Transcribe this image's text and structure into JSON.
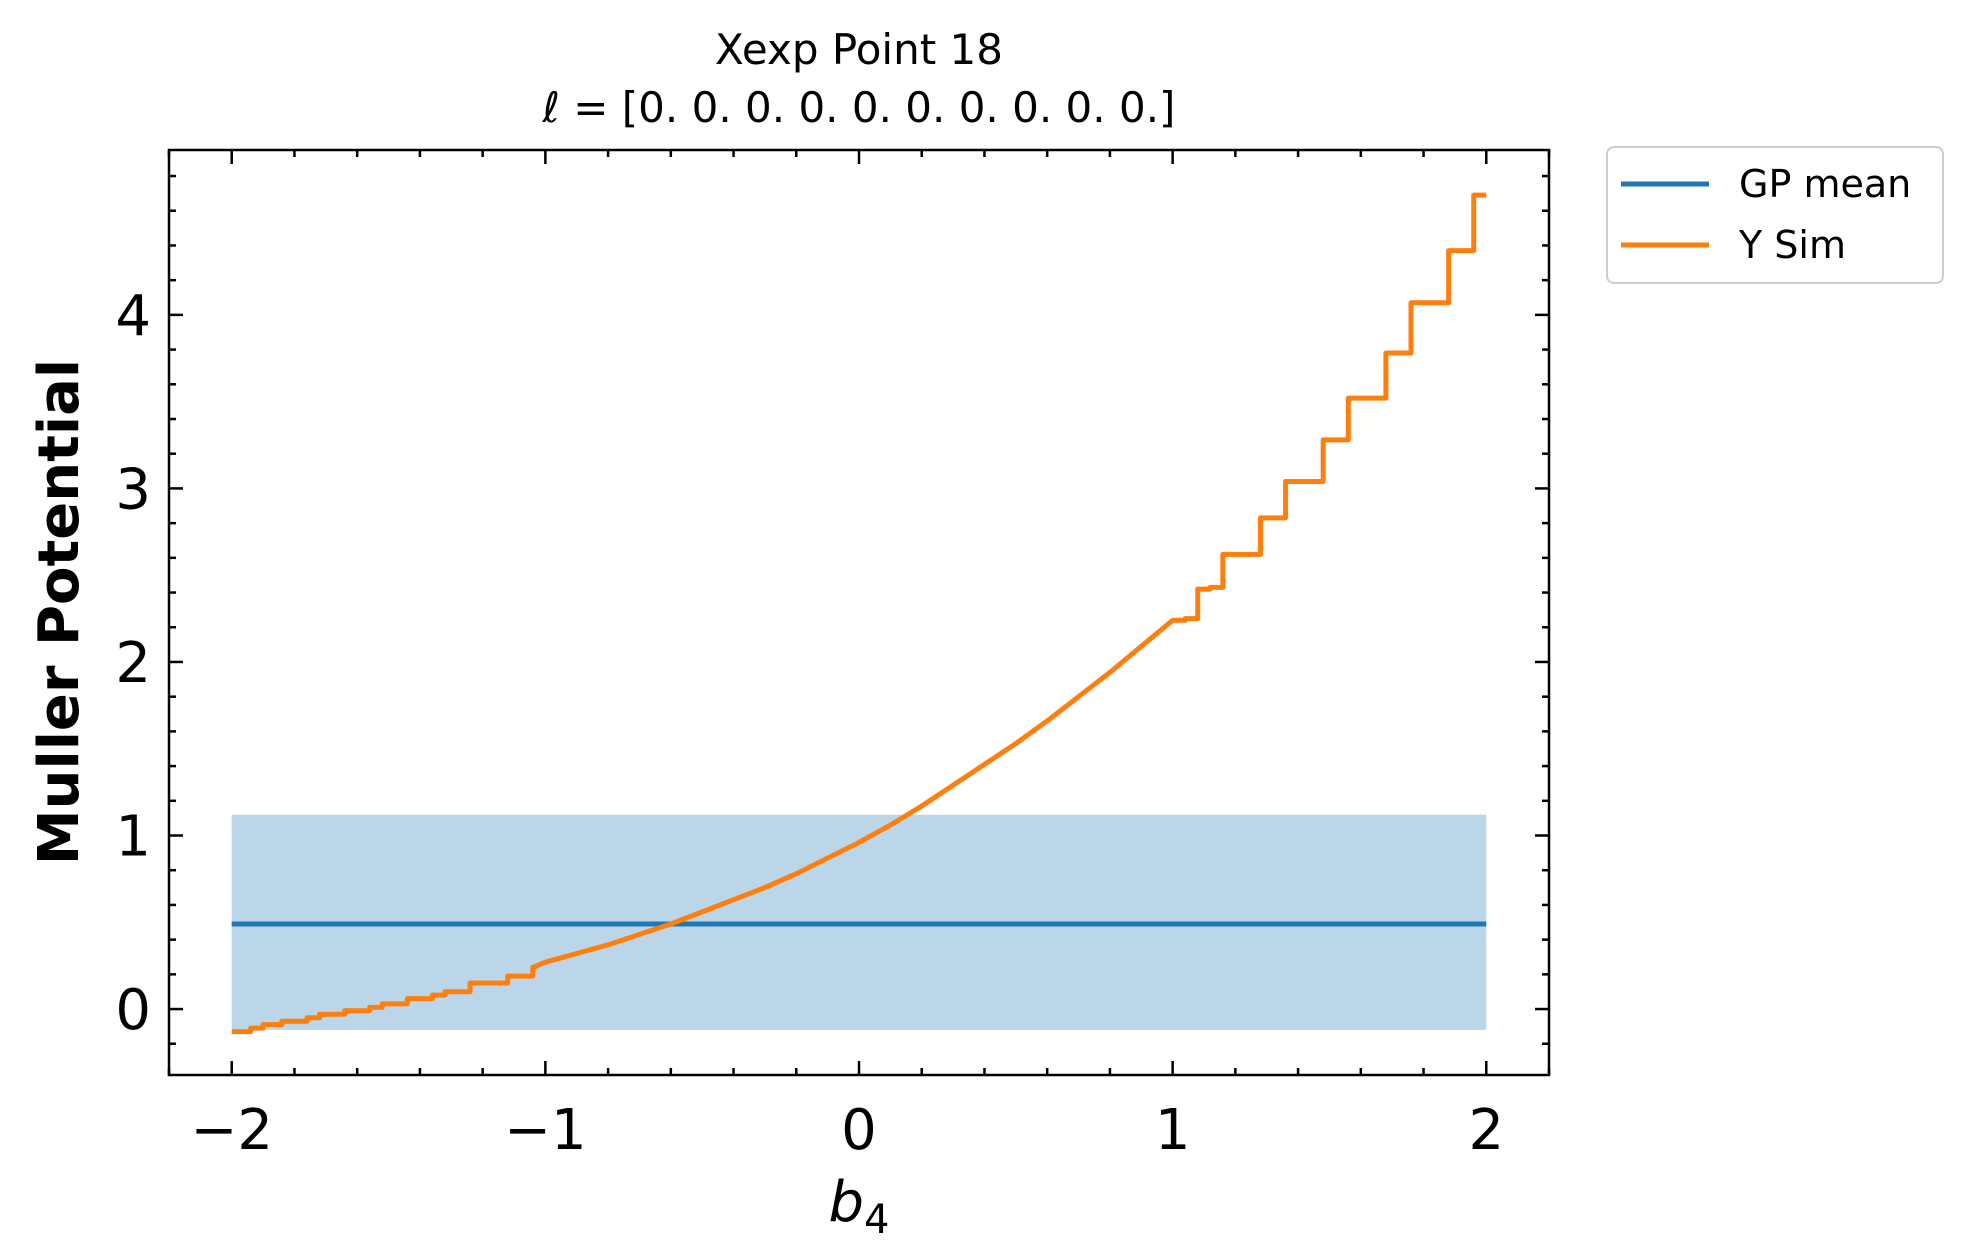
{
  "chart_data": {
    "type": "line",
    "title": "Xexp Point 18",
    "subtitle": "ℓ = [0. 0. 0. 0. 0. 0. 0. 0. 0. 0.]",
    "xlabel": "b",
    "xlabel_sub": "4",
    "ylabel": "Muller Potential",
    "xlim": [
      -2.2,
      2.2
    ],
    "ylim": [
      -0.38,
      4.95
    ],
    "xticks": [
      -2,
      -1,
      0,
      1,
      2
    ],
    "xtick_labels": [
      "−2",
      "−1",
      "0",
      "1",
      "2"
    ],
    "yticks": [
      0,
      1,
      2,
      3,
      4
    ],
    "ytick_labels": [
      "0",
      "1",
      "2",
      "3",
      "4"
    ],
    "grid": false,
    "legend_placement": "outside-top-right",
    "series": [
      {
        "name": "GP mean",
        "color": "#1f77b4",
        "x": [
          -2,
          2
        ],
        "y": [
          0.49,
          0.49
        ],
        "band": {
          "lower": -0.12,
          "upper": 1.12,
          "color": "#bcd6e9"
        }
      },
      {
        "name": "Y Sim",
        "color": "#ff7f0e",
        "x": [
          -2.0,
          -1.95,
          -1.9,
          -1.85,
          -1.8,
          -1.75,
          -1.7,
          -1.65,
          -1.6,
          -1.55,
          -1.5,
          -1.45,
          -1.4,
          -1.35,
          -1.3,
          -1.25,
          -1.2,
          -1.15,
          -1.1,
          -1.05,
          -1.0,
          -0.9,
          -0.8,
          -0.7,
          -0.6,
          -0.5,
          -0.4,
          -0.3,
          -0.2,
          -0.1,
          0.0,
          0.1,
          0.2,
          0.3,
          0.4,
          0.5,
          0.6,
          0.7,
          0.8,
          0.9,
          1.0,
          1.05,
          1.1,
          1.15,
          1.2,
          1.25,
          1.3,
          1.35,
          1.4,
          1.45,
          1.5,
          1.55,
          1.6,
          1.65,
          1.7,
          1.75,
          1.8,
          1.85,
          1.9,
          1.95,
          2.0
        ],
        "y": [
          -0.13,
          -0.1,
          -0.08,
          -0.06,
          -0.04,
          -0.02,
          0.0,
          0.02,
          0.04,
          0.06,
          0.08,
          0.1,
          0.12,
          0.14,
          0.16,
          0.18,
          0.2,
          0.22,
          0.24,
          0.26,
          0.27,
          0.32,
          0.37,
          0.43,
          0.49,
          0.56,
          0.63,
          0.7,
          0.78,
          0.87,
          0.96,
          1.06,
          1.17,
          1.29,
          1.41,
          1.53,
          1.66,
          1.8,
          1.94,
          2.09,
          2.24,
          2.34,
          2.44,
          2.54,
          2.63,
          2.73,
          2.83,
          2.94,
          3.05,
          3.16,
          3.28,
          3.4,
          3.52,
          3.65,
          3.79,
          3.93,
          4.07,
          4.22,
          4.37,
          4.53,
          4.69
        ],
        "steps": [
          [
            -1.98,
            -0.13
          ],
          [
            -1.94,
            -0.11
          ],
          [
            -1.9,
            -0.09
          ],
          [
            -1.84,
            -0.07
          ],
          [
            -1.76,
            -0.05
          ],
          [
            -1.72,
            -0.03
          ],
          [
            -1.64,
            -0.01
          ],
          [
            -1.56,
            0.01
          ],
          [
            -1.52,
            0.03
          ],
          [
            -1.44,
            0.06
          ],
          [
            -1.36,
            0.08
          ],
          [
            -1.32,
            0.1
          ],
          [
            -1.24,
            0.15
          ],
          [
            -1.16,
            0.15
          ],
          [
            -1.12,
            0.19
          ],
          [
            -1.04,
            0.24
          ],
          [
            1.0,
            2.24
          ],
          [
            1.04,
            2.25
          ],
          [
            1.08,
            2.42
          ],
          [
            1.12,
            2.43
          ],
          [
            1.16,
            2.62
          ],
          [
            1.24,
            2.62
          ],
          [
            1.28,
            2.83
          ],
          [
            1.32,
            2.83
          ],
          [
            1.36,
            3.04
          ],
          [
            1.44,
            3.04
          ],
          [
            1.48,
            3.28
          ],
          [
            1.52,
            3.28
          ],
          [
            1.56,
            3.52
          ],
          [
            1.64,
            3.52
          ],
          [
            1.68,
            3.78
          ],
          [
            1.72,
            3.78
          ],
          [
            1.76,
            4.07
          ],
          [
            1.84,
            4.07
          ],
          [
            1.88,
            4.37
          ],
          [
            1.92,
            4.37
          ],
          [
            1.96,
            4.69
          ],
          [
            2.0,
            4.69
          ]
        ]
      }
    ]
  }
}
